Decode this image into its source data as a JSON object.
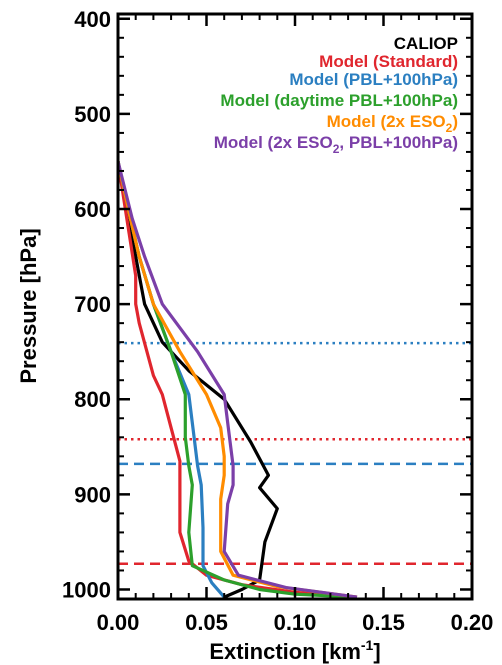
{
  "chart_data": {
    "type": "line",
    "xlabel": "Extinction [km",
    "xlabel_sup": "-1",
    "xlabel_end": "]",
    "ylabel": "Pressure [hPa]",
    "xlim": [
      0,
      0.2
    ],
    "ylim": [
      1010,
      395
    ],
    "y_inverted": true,
    "xticks": [
      {
        "value": 0.0,
        "label": "0.00"
      },
      {
        "value": 0.05,
        "label": "0.05"
      },
      {
        "value": 0.1,
        "label": "0.10"
      },
      {
        "value": 0.15,
        "label": "0.15"
      },
      {
        "value": 0.2,
        "label": "0.20"
      }
    ],
    "yticks": [
      {
        "value": 400,
        "label": "400"
      },
      {
        "value": 500,
        "label": "500"
      },
      {
        "value": 600,
        "label": "600"
      },
      {
        "value": 700,
        "label": "700"
      },
      {
        "value": 800,
        "label": "800"
      },
      {
        "value": 900,
        "label": "900"
      },
      {
        "value": 1000,
        "label": "1000"
      }
    ],
    "legend_position": "top-right",
    "series": [
      {
        "name": "CALIOP",
        "legend_parts": [
          {
            "t": "CALIOP"
          }
        ],
        "color": "#000000",
        "points": [
          [
            0.0,
            550
          ],
          [
            0.005,
            600
          ],
          [
            0.01,
            650
          ],
          [
            0.015,
            700
          ],
          [
            0.025,
            740
          ],
          [
            0.04,
            770
          ],
          [
            0.06,
            800
          ],
          [
            0.075,
            845
          ],
          [
            0.085,
            880
          ],
          [
            0.08,
            893
          ],
          [
            0.09,
            915
          ],
          [
            0.083,
            950
          ],
          [
            0.08,
            990
          ],
          [
            0.07,
            1000
          ],
          [
            0.06,
            1008
          ]
        ]
      },
      {
        "name": "Model (Standard)",
        "legend_parts": [
          {
            "t": "Model (Standard)"
          }
        ],
        "color": "#e0262e",
        "points": [
          [
            0.0,
            550
          ],
          [
            0.005,
            610
          ],
          [
            0.01,
            670
          ],
          [
            0.01,
            700
          ],
          [
            0.012,
            720
          ],
          [
            0.02,
            775
          ],
          [
            0.025,
            795
          ],
          [
            0.03,
            830
          ],
          [
            0.035,
            865
          ],
          [
            0.035,
            940
          ],
          [
            0.04,
            970
          ],
          [
            0.05,
            985
          ],
          [
            0.07,
            995
          ],
          [
            0.1,
            1003
          ],
          [
            0.135,
            1008
          ]
        ]
      },
      {
        "name": "Model (PBL+100hPa)",
        "legend_parts": [
          {
            "t": "Model (PBL+100hPa)"
          }
        ],
        "color": "#2b7fc1",
        "points": [
          [
            0.0,
            550
          ],
          [
            0.007,
            610
          ],
          [
            0.012,
            650
          ],
          [
            0.02,
            700
          ],
          [
            0.03,
            750
          ],
          [
            0.04,
            795
          ],
          [
            0.043,
            840
          ],
          [
            0.045,
            870
          ],
          [
            0.047,
            890
          ],
          [
            0.048,
            935
          ],
          [
            0.048,
            975
          ],
          [
            0.053,
            993
          ],
          [
            0.06,
            1008
          ]
        ]
      },
      {
        "name": "Model (daytime PBL+100hPa)",
        "legend_parts": [
          {
            "t": "Model (daytime PBL+100hPa)"
          }
        ],
        "color": "#2ca02c",
        "points": [
          [
            0.0,
            550
          ],
          [
            0.007,
            610
          ],
          [
            0.012,
            650
          ],
          [
            0.02,
            700
          ],
          [
            0.03,
            750
          ],
          [
            0.038,
            795
          ],
          [
            0.038,
            840
          ],
          [
            0.04,
            870
          ],
          [
            0.042,
            890
          ],
          [
            0.04,
            940
          ],
          [
            0.042,
            975
          ],
          [
            0.06,
            990
          ],
          [
            0.08,
            1000
          ],
          [
            0.1,
            1005
          ],
          [
            0.135,
            1008
          ]
        ]
      },
      {
        "name": "Model (2x ESO2)",
        "legend_parts": [
          {
            "t": "Model (2x ESO"
          },
          {
            "t": "2",
            "sub": true
          },
          {
            "t": ")"
          }
        ],
        "color": "#ff8c00",
        "points": [
          [
            0.0,
            550
          ],
          [
            0.007,
            610
          ],
          [
            0.012,
            650
          ],
          [
            0.02,
            700
          ],
          [
            0.035,
            750
          ],
          [
            0.05,
            795
          ],
          [
            0.058,
            830
          ],
          [
            0.06,
            860
          ],
          [
            0.06,
            880
          ],
          [
            0.058,
            905
          ],
          [
            0.058,
            960
          ],
          [
            0.065,
            985
          ],
          [
            0.09,
            997
          ],
          [
            0.135,
            1008
          ]
        ]
      },
      {
        "name": "Model (2x ESO2, PBL+100hPa)",
        "legend_parts": [
          {
            "t": "Model (2x ESO"
          },
          {
            "t": "2",
            "sub": true
          },
          {
            "t": ", PBL+100hPa)"
          }
        ],
        "color": "#7b3fa8",
        "points": [
          [
            0.0,
            550
          ],
          [
            0.008,
            610
          ],
          [
            0.015,
            650
          ],
          [
            0.025,
            700
          ],
          [
            0.045,
            750
          ],
          [
            0.06,
            795
          ],
          [
            0.063,
            840
          ],
          [
            0.065,
            870
          ],
          [
            0.065,
            890
          ],
          [
            0.062,
            910
          ],
          [
            0.06,
            960
          ],
          [
            0.068,
            985
          ],
          [
            0.095,
            998
          ],
          [
            0.135,
            1008
          ]
        ]
      }
    ],
    "reference_lines": [
      {
        "y": 741,
        "color": "#2b7fc1",
        "style": "dotted"
      },
      {
        "y": 842,
        "color": "#e0262e",
        "style": "dotted"
      },
      {
        "y": 868,
        "color": "#2b7fc1",
        "style": "dashed"
      },
      {
        "y": 973,
        "color": "#e0262e",
        "style": "dashed"
      }
    ]
  }
}
